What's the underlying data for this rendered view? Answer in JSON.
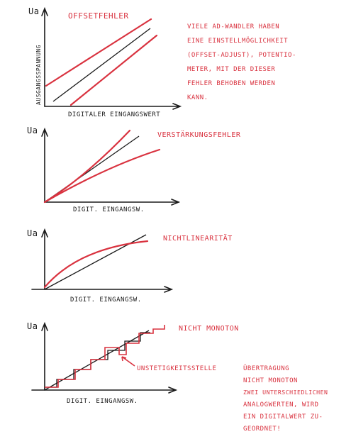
{
  "panels": [
    {
      "id": "offset",
      "title": "OFFSETFEHLER",
      "ylabel": "Ua",
      "yaxis_title": "AUSGANGSSPANNUNG",
      "xlabel": "DIGITALER EINGANGSWERT"
    },
    {
      "id": "gain",
      "title": "VERSTÄRKUNGSFEHLER",
      "ylabel": "Ua",
      "xlabel": "DIGIT. EINGANGSW."
    },
    {
      "id": "nonlin",
      "title": "NICHTLINEARITÄT",
      "ylabel": "Ua",
      "xlabel": "DIGIT. EINGANGSW."
    },
    {
      "id": "nonmono",
      "title": "NICHT MONOTON",
      "ylabel": "Ua",
      "xlabel": "DIGIT. EINGANGSW.",
      "callout": "UNSTETIGKEITSSTELLE"
    }
  ],
  "notes": {
    "offset": [
      "VIELE AD-WANDLER HABEN",
      "EINE EINSTELLMÖGLICHKEIT",
      "(OFFSET-ADJUST), POTENTIO-",
      "METER, MIT DER DIESER",
      "FEHLER BEHOBEN WERDEN",
      "KANN."
    ],
    "nonmono": [
      "ÜBERTRAGUNG",
      "NICHT MONOTON",
      "ZWEI UNTERSCHIEDLICHEN",
      "ANALOGWERTEN, WIRD",
      "EIN DIGITALWERT ZU-",
      "GEORDNET!"
    ]
  },
  "colors": {
    "ink": "#1a1a1a",
    "accent": "#d9323f"
  }
}
